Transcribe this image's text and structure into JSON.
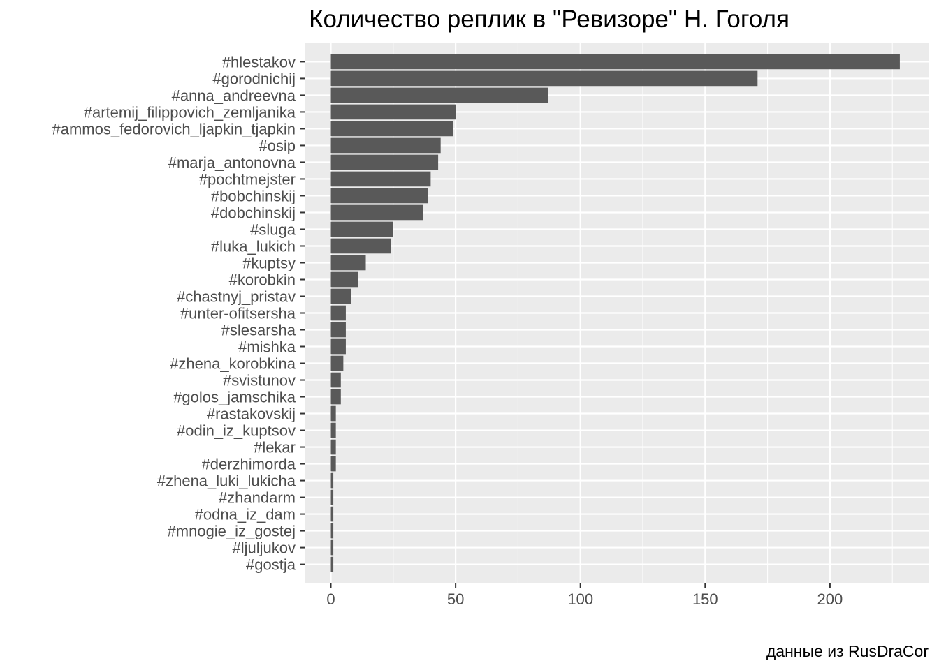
{
  "chart_data": {
    "type": "bar",
    "orientation": "horizontal",
    "title": "Количество реплик в \"Ревизоре\" Н. Гоголя",
    "caption": "данные из RusDraCor",
    "xlabel": "",
    "ylabel": "",
    "categories": [
      "#hlestakov",
      "#gorodnichij",
      "#anna_andreevna",
      "#artemij_filippovich_zemljanika",
      "#ammos_fedorovich_ljapkin_tjapkin",
      "#osip",
      "#marja_antonovna",
      "#pochtmejster",
      "#bobchinskij",
      "#dobchinskij",
      "#sluga",
      "#luka_lukich",
      "#kuptsy",
      "#korobkin",
      "#chastnyj_pristav",
      "#unter-ofitsersha",
      "#slesarsha",
      "#mishka",
      "#zhena_korobkina",
      "#svistunov",
      "#golos_jamschika",
      "#rastakovskij",
      "#odin_iz_kuptsov",
      "#lekar",
      "#derzhimorda",
      "#zhena_luki_lukicha",
      "#zhandarm",
      "#odna_iz_dam",
      "#mnogie_iz_gostej",
      "#ljuljukov",
      "#gostja"
    ],
    "values": [
      228,
      171,
      87,
      50,
      49,
      44,
      43,
      40,
      39,
      37,
      25,
      24,
      14,
      11,
      8,
      6,
      6,
      6,
      5,
      4,
      4,
      2,
      2,
      2,
      2,
      1,
      1,
      1,
      1,
      1,
      1
    ],
    "xlim": [
      -10.5,
      239.5
    ],
    "xticks": [
      "0",
      "50",
      "100",
      "150",
      "200"
    ],
    "xtick_values": [
      0,
      50,
      100,
      150,
      200
    ],
    "grid": true,
    "legend": "none",
    "colors": {
      "bar": "#595959",
      "panel": "#ebebeb",
      "grid_major": "#ffffff",
      "tick_text": "#4d4d4d",
      "title": "#000000"
    }
  }
}
